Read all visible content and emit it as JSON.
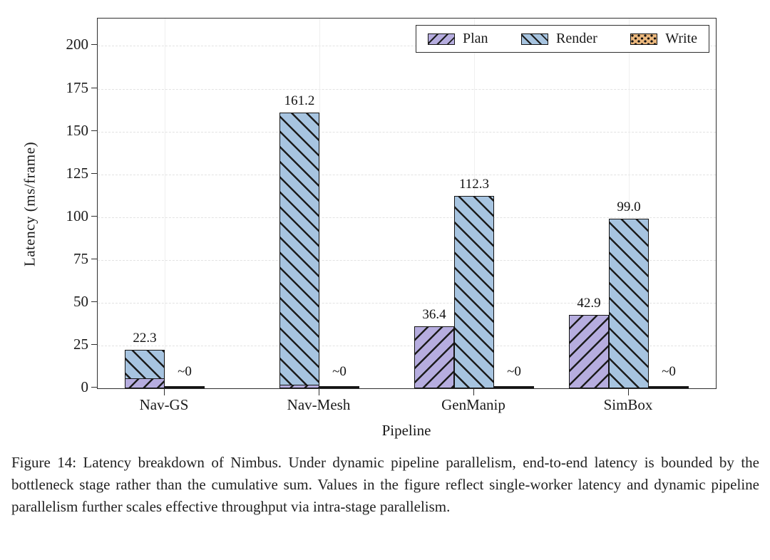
{
  "figure": {
    "caption": "Figure 14: Latency breakdown of Nimbus. Under dynamic pipeline parallelism, end-to-end latency is bounded by the bottleneck stage rather than the cumulative sum. Values in the figure reflect single-worker latency and dynamic pipeline parallelism further scales effective throughput via intra-stage parallelism."
  },
  "chart_data": {
    "type": "bar",
    "title": "",
    "xlabel": "Pipeline",
    "ylabel": "Latency (ms/frame)",
    "ylim": [
      0,
      216
    ],
    "yticks": [
      0,
      25,
      50,
      75,
      100,
      125,
      150,
      175,
      200
    ],
    "grid": "horizontal dashed gridlines at 25-unit intervals, faint vertical gridlines at category centers",
    "legend_position": "upper right inside plot",
    "categories": [
      "Nav-GS",
      "Nav-Mesh",
      "GenManip",
      "SimBox"
    ],
    "series": [
      {
        "name": "Plan",
        "color": "#b6addf",
        "hatch": "//",
        "values": [
          6.0,
          2.0,
          36.4,
          42.9
        ]
      },
      {
        "name": "Render",
        "color": "#a7c4e0",
        "hatch": "\\\\",
        "values": [
          22.3,
          161.2,
          112.3,
          99.0
        ]
      },
      {
        "name": "Write",
        "color": "#eab77d",
        "hatch": "..",
        "values": [
          0.5,
          0.5,
          0.5,
          0.5
        ]
      }
    ],
    "plan_overlaps_render": [
      true,
      true,
      false,
      false
    ],
    "value_labels": [
      {
        "plan": null,
        "render": "22.3",
        "write": "~0"
      },
      {
        "plan": null,
        "render": "161.2",
        "write": "~0"
      },
      {
        "plan": "36.4",
        "render": "112.3",
        "write": "~0"
      },
      {
        "plan": "42.9",
        "render": "99.0",
        "write": "~0"
      }
    ]
  },
  "legend": {
    "items": [
      {
        "label": "Plan"
      },
      {
        "label": "Render"
      },
      {
        "label": "Write"
      }
    ]
  }
}
